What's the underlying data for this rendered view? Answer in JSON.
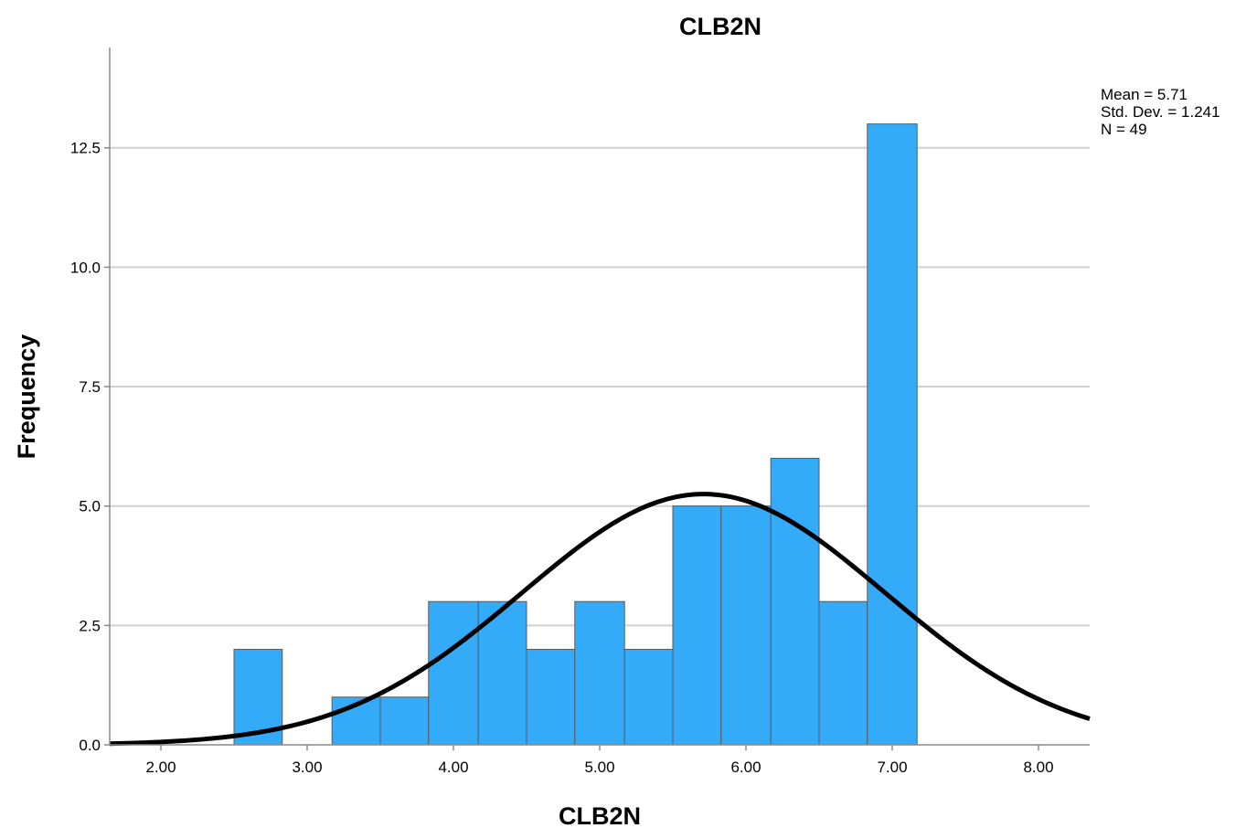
{
  "chart_data": {
    "type": "bar",
    "title": "CLB2N",
    "xlabel": "CLB2N",
    "ylabel": "Frequency",
    "xlim": [
      1.65,
      8.35
    ],
    "ylim": [
      0,
      14.6
    ],
    "x_ticks": [
      {
        "value": 2,
        "label": "2.00"
      },
      {
        "value": 3,
        "label": "3.00"
      },
      {
        "value": 4,
        "label": "4.00"
      },
      {
        "value": 5,
        "label": "5.00"
      },
      {
        "value": 6,
        "label": "6.00"
      },
      {
        "value": 7,
        "label": "7.00"
      },
      {
        "value": 8,
        "label": "8.00"
      }
    ],
    "y_ticks": [
      {
        "value": 0,
        "label": "0.0"
      },
      {
        "value": 2.5,
        "label": "2.5"
      },
      {
        "value": 5,
        "label": "5.0"
      },
      {
        "value": 7.5,
        "label": "7.5"
      },
      {
        "value": 10,
        "label": "10.0"
      },
      {
        "value": 12.5,
        "label": "12.5"
      }
    ],
    "bins": [
      {
        "start": 2.5,
        "end": 2.83,
        "count": 2
      },
      {
        "start": 3.17,
        "end": 3.5,
        "count": 1
      },
      {
        "start": 3.5,
        "end": 3.83,
        "count": 1
      },
      {
        "start": 3.83,
        "end": 4.17,
        "count": 3
      },
      {
        "start": 4.17,
        "end": 4.5,
        "count": 3
      },
      {
        "start": 4.5,
        "end": 4.83,
        "count": 2
      },
      {
        "start": 4.83,
        "end": 5.17,
        "count": 3
      },
      {
        "start": 5.17,
        "end": 5.5,
        "count": 2
      },
      {
        "start": 5.5,
        "end": 5.83,
        "count": 5
      },
      {
        "start": 5.83,
        "end": 6.17,
        "count": 5
      },
      {
        "start": 6.17,
        "end": 6.5,
        "count": 6
      },
      {
        "start": 6.5,
        "end": 6.83,
        "count": 3
      },
      {
        "start": 6.83,
        "end": 7.17,
        "count": 13
      }
    ],
    "normal_curve": {
      "mean": 5.71,
      "std": 1.241,
      "n": 49,
      "bin_width": 0.3333
    },
    "grid": "horizontal",
    "legend_placement": "top-right"
  },
  "stats": {
    "mean": "Mean = 5.71",
    "std": "Std. Dev. = 1.241",
    "n": "N = 49"
  },
  "colors": {
    "bar_fill": "#33abf9",
    "bar_stroke": "#5a5a5a",
    "curve": "#000000",
    "grid": "#d0d0d0"
  }
}
